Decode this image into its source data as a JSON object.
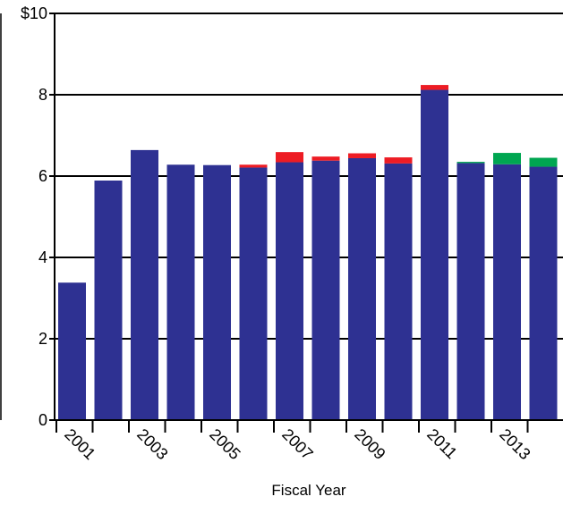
{
  "chart_data": {
    "type": "bar",
    "stacked": true,
    "xlabel": "Fiscal Year",
    "ylabel": "",
    "title": "",
    "ylim": [
      0,
      10
    ],
    "y_ticks": [
      {
        "value": 0,
        "label": "0"
      },
      {
        "value": 2,
        "label": "2"
      },
      {
        "value": 4,
        "label": "4"
      },
      {
        "value": 6,
        "label": "6"
      },
      {
        "value": 8,
        "label": "8"
      },
      {
        "value": 10,
        "label": "$10"
      }
    ],
    "categories": [
      "2001",
      "2002",
      "2003",
      "2004",
      "2005",
      "2006",
      "2007",
      "2008",
      "2009",
      "2010",
      "2011",
      "2012",
      "2013",
      "2014"
    ],
    "x_tick_labels": [
      "2001",
      "",
      "2003",
      "",
      "2005",
      "",
      "2007",
      "",
      "2009",
      "",
      "2011",
      "",
      "2013",
      ""
    ],
    "grid": "horizontal",
    "legend": "none",
    "series": [
      {
        "color": "#2e3192",
        "values": [
          3.38,
          5.89,
          6.64,
          6.28,
          6.27,
          6.21,
          6.34,
          6.38,
          6.44,
          6.31,
          8.12,
          6.32,
          6.29,
          6.23
        ]
      },
      {
        "color": "#ed1c24",
        "values": [
          0,
          0,
          0,
          0,
          0,
          0.07,
          0.25,
          0.1,
          0.12,
          0.15,
          0.12,
          0,
          0,
          0
        ]
      },
      {
        "color": "#00a651",
        "values": [
          0,
          0,
          0,
          0,
          0,
          0,
          0,
          0,
          0,
          0,
          0,
          0.03,
          0.28,
          0.22
        ]
      }
    ]
  }
}
